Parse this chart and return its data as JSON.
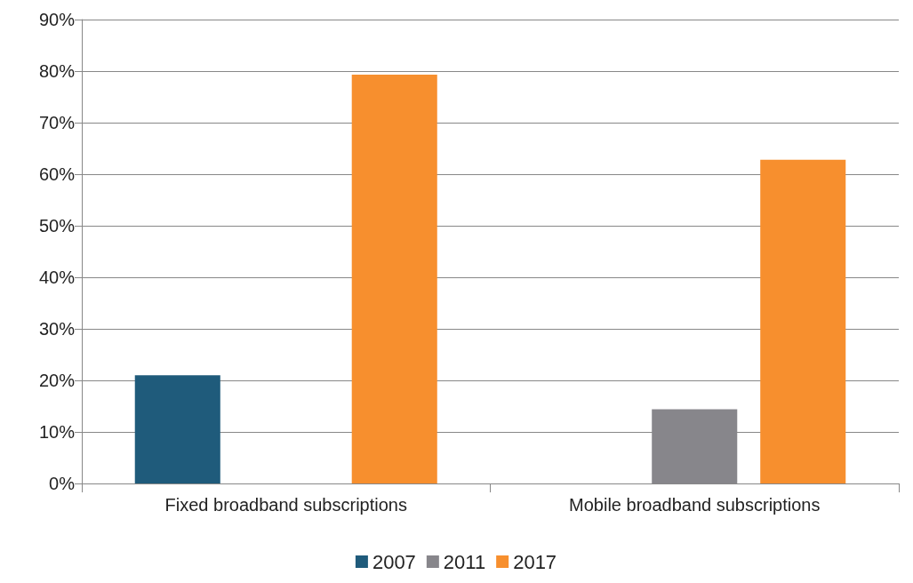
{
  "chart_data": {
    "type": "bar",
    "categories": [
      "Fixed broadband subscriptions",
      "Mobile broadband subscriptions"
    ],
    "series": [
      {
        "name": "2007",
        "color": "#1f5b7b",
        "values": [
          21,
          null
        ]
      },
      {
        "name": "2011",
        "color": "#87868b",
        "values": [
          null,
          14.4
        ]
      },
      {
        "name": "2017",
        "color": "#f78f2e",
        "values": [
          79.3,
          62.8
        ]
      }
    ],
    "ylim": [
      0,
      90
    ],
    "yticks": [
      {
        "value": 0,
        "label": "0%"
      },
      {
        "value": 10,
        "label": "10%"
      },
      {
        "value": 20,
        "label": "20%"
      },
      {
        "value": 30,
        "label": "30%"
      },
      {
        "value": 40,
        "label": "40%"
      },
      {
        "value": 50,
        "label": "50%"
      },
      {
        "value": 60,
        "label": "60%"
      },
      {
        "value": 70,
        "label": "70%"
      },
      {
        "value": 80,
        "label": "80%"
      },
      {
        "value": 90,
        "label": "90%"
      }
    ],
    "grid": "y",
    "legend": "bottom"
  }
}
